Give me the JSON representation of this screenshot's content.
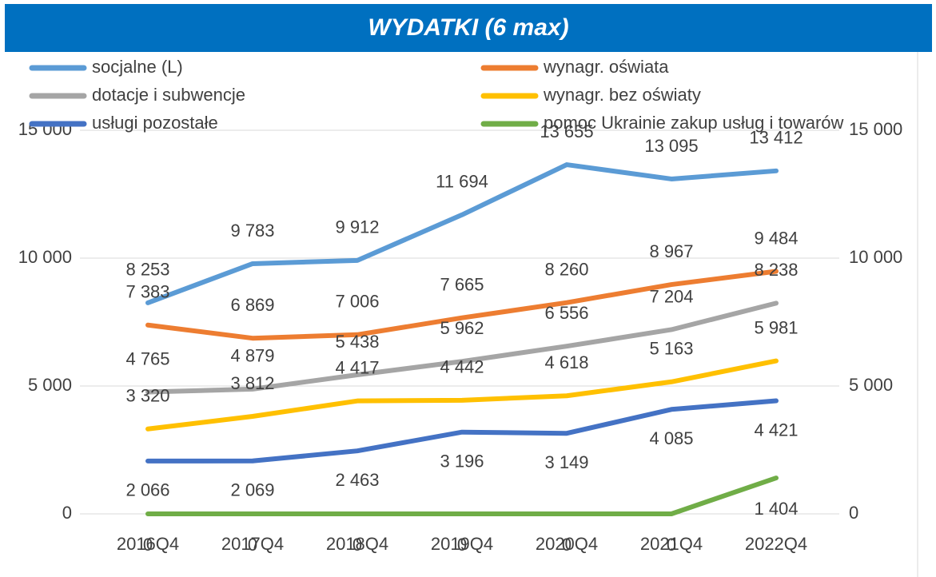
{
  "chart_data": {
    "type": "line",
    "title": "WYDATKI (6 max)",
    "categories": [
      "2016Q4",
      "2017Q4",
      "2018Q4",
      "2019Q4",
      "2020Q4",
      "2021Q4",
      "2022Q4"
    ],
    "series": [
      {
        "name": "socjalne (L)",
        "color": "#5b9bd5",
        "values": [
          8253,
          9783,
          9912,
          11694,
          13655,
          13095,
          13412
        ],
        "value_labels": [
          "8 253",
          "9 783",
          "9 912",
          "11 694",
          "13 655",
          "13 095",
          "13 412"
        ]
      },
      {
        "name": "wynagr. oświata",
        "color": "#ed7d31",
        "axis": "y2",
        "values": [
          7383,
          6869,
          7006,
          7665,
          8260,
          8967,
          9484
        ],
        "value_labels": [
          "7 383",
          "6 869",
          "7 006",
          "7 665",
          "8 260",
          "8 967",
          "9 484"
        ]
      },
      {
        "name": "dotacje i subwencje",
        "color": "#a5a5a5",
        "axis": "y2",
        "values": [
          4765,
          4879,
          5438,
          5962,
          6556,
          7204,
          8238
        ],
        "value_labels": [
          "4 765",
          "4 879",
          "5 438",
          "5 962",
          "6 556",
          "7 204",
          "8 238"
        ]
      },
      {
        "name": "wynagr. bez oświaty",
        "color": "#ffc000",
        "axis": "y2",
        "values": [
          3320,
          3812,
          4417,
          4442,
          4618,
          5163,
          5981
        ],
        "value_labels": [
          "3 320",
          "3 812",
          "4 417",
          "4 442",
          "4 618",
          "5 163",
          "5 981"
        ]
      },
      {
        "name": "usługi pozostałe",
        "color": "#4472c4",
        "axis": "y2",
        "values": [
          2066,
          2069,
          2463,
          3196,
          3149,
          4085,
          4421
        ],
        "value_labels": [
          "2 066",
          "2 069",
          "2 463",
          "3 196",
          "3 149",
          "4 085",
          "4 421"
        ]
      },
      {
        "name": "pomoc Ukrainie zakup usług i towarów",
        "color": "#70ad47",
        "axis": "y2",
        "values": [
          0,
          0,
          0,
          0,
          0,
          0,
          1404
        ],
        "value_labels": [
          "0",
          "0",
          "0",
          "0",
          "0",
          "0",
          "1 404"
        ]
      }
    ],
    "ylim": [
      0,
      15000
    ],
    "yticks": [
      0,
      {
        "value": 5000,
        "label": "5 000"
      },
      {
        "value": 10000,
        "label": "10 000"
      },
      {
        "value": 15000,
        "label": "15 000"
      }
    ],
    "y2lim": [
      0,
      15000
    ],
    "y2ticks": [
      0,
      {
        "value": 5000,
        "label": "5 000"
      },
      {
        "value": 10000,
        "label": "10 000"
      },
      {
        "value": 15000,
        "label": "15 000"
      }
    ],
    "grid": true,
    "legend": "top"
  }
}
